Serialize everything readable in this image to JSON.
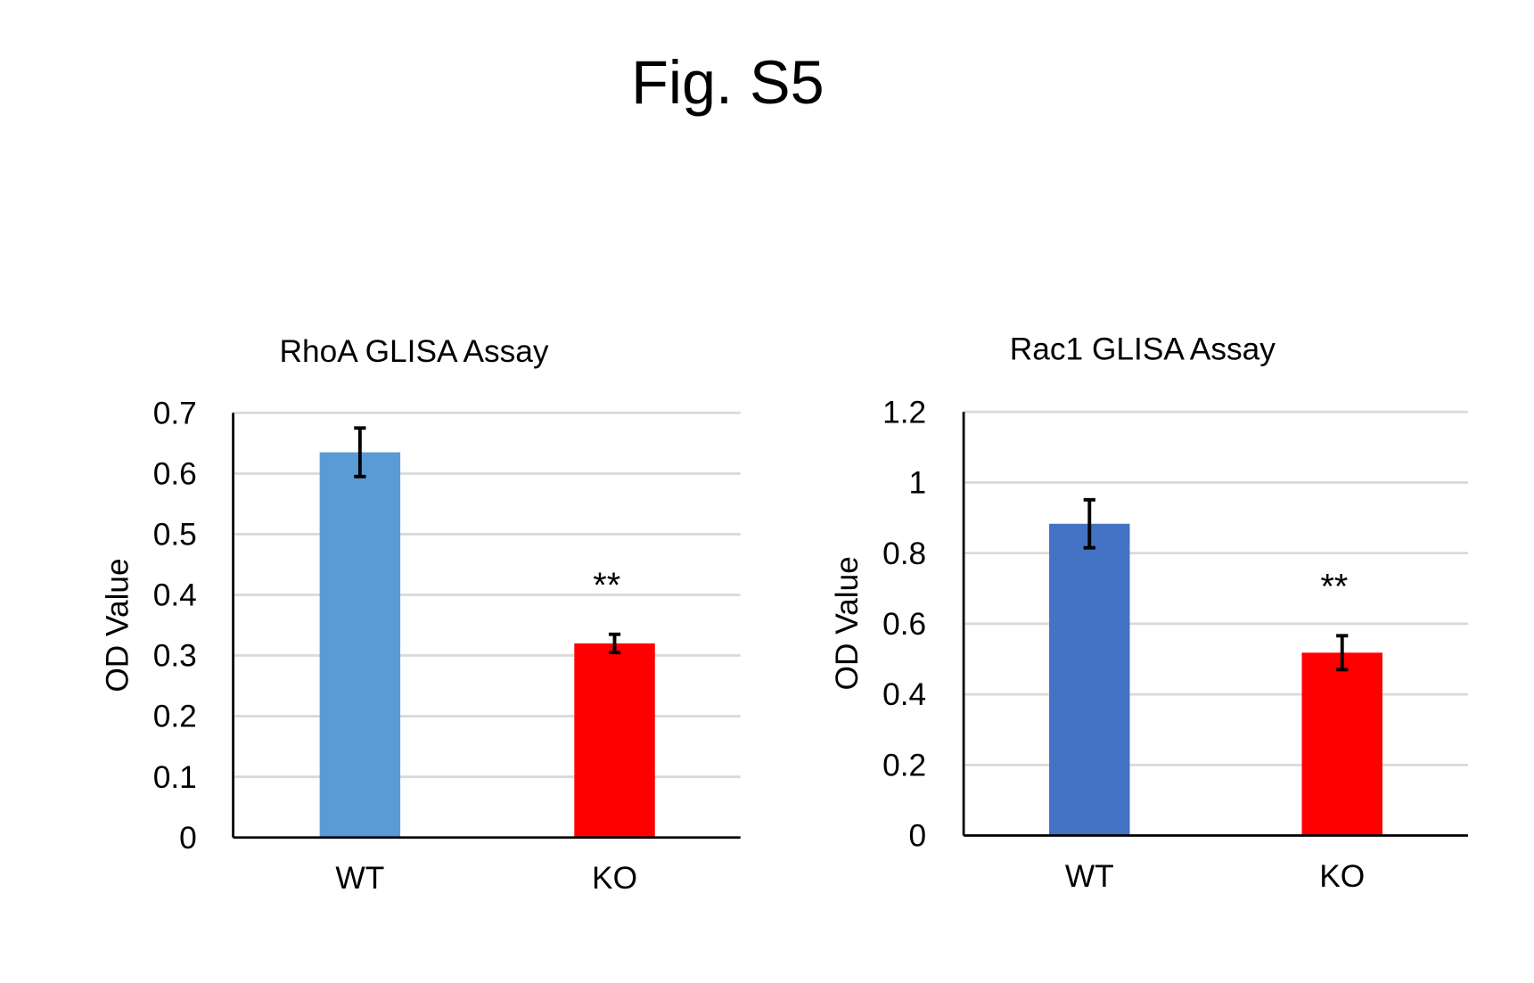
{
  "figure_title": "Fig. S5",
  "chart_data": [
    {
      "type": "bar",
      "title": "RhoA GLISA Assay",
      "xlabel": "",
      "ylabel": "OD Value",
      "categories": [
        "WT",
        "KO"
      ],
      "values": [
        0.635,
        0.32
      ],
      "error": [
        0.04,
        0.015
      ],
      "colors": [
        "#5B9BD5",
        "#FF0000"
      ],
      "annotations": [
        {
          "category": "KO",
          "text": "**"
        }
      ],
      "ylim": [
        0,
        0.7
      ],
      "yticks": [
        "0",
        "0.1",
        "0.2",
        "0.3",
        "0.4",
        "0.5",
        "0.6",
        "0.7"
      ],
      "grid": true
    },
    {
      "type": "bar",
      "title": "Rac1 GLISA Assay",
      "xlabel": "",
      "ylabel": "OD Value",
      "categories": [
        "WT",
        "KO"
      ],
      "values": [
        0.883,
        0.518
      ],
      "error": [
        0.068,
        0.048
      ],
      "colors": [
        "#4472C4",
        "#FF0000"
      ],
      "annotations": [
        {
          "category": "KO",
          "text": "**"
        }
      ],
      "ylim": [
        0,
        1.2
      ],
      "yticks": [
        "0",
        "0.2",
        "0.4",
        "0.6",
        "0.8",
        "1",
        "1.2"
      ],
      "grid": true
    }
  ]
}
